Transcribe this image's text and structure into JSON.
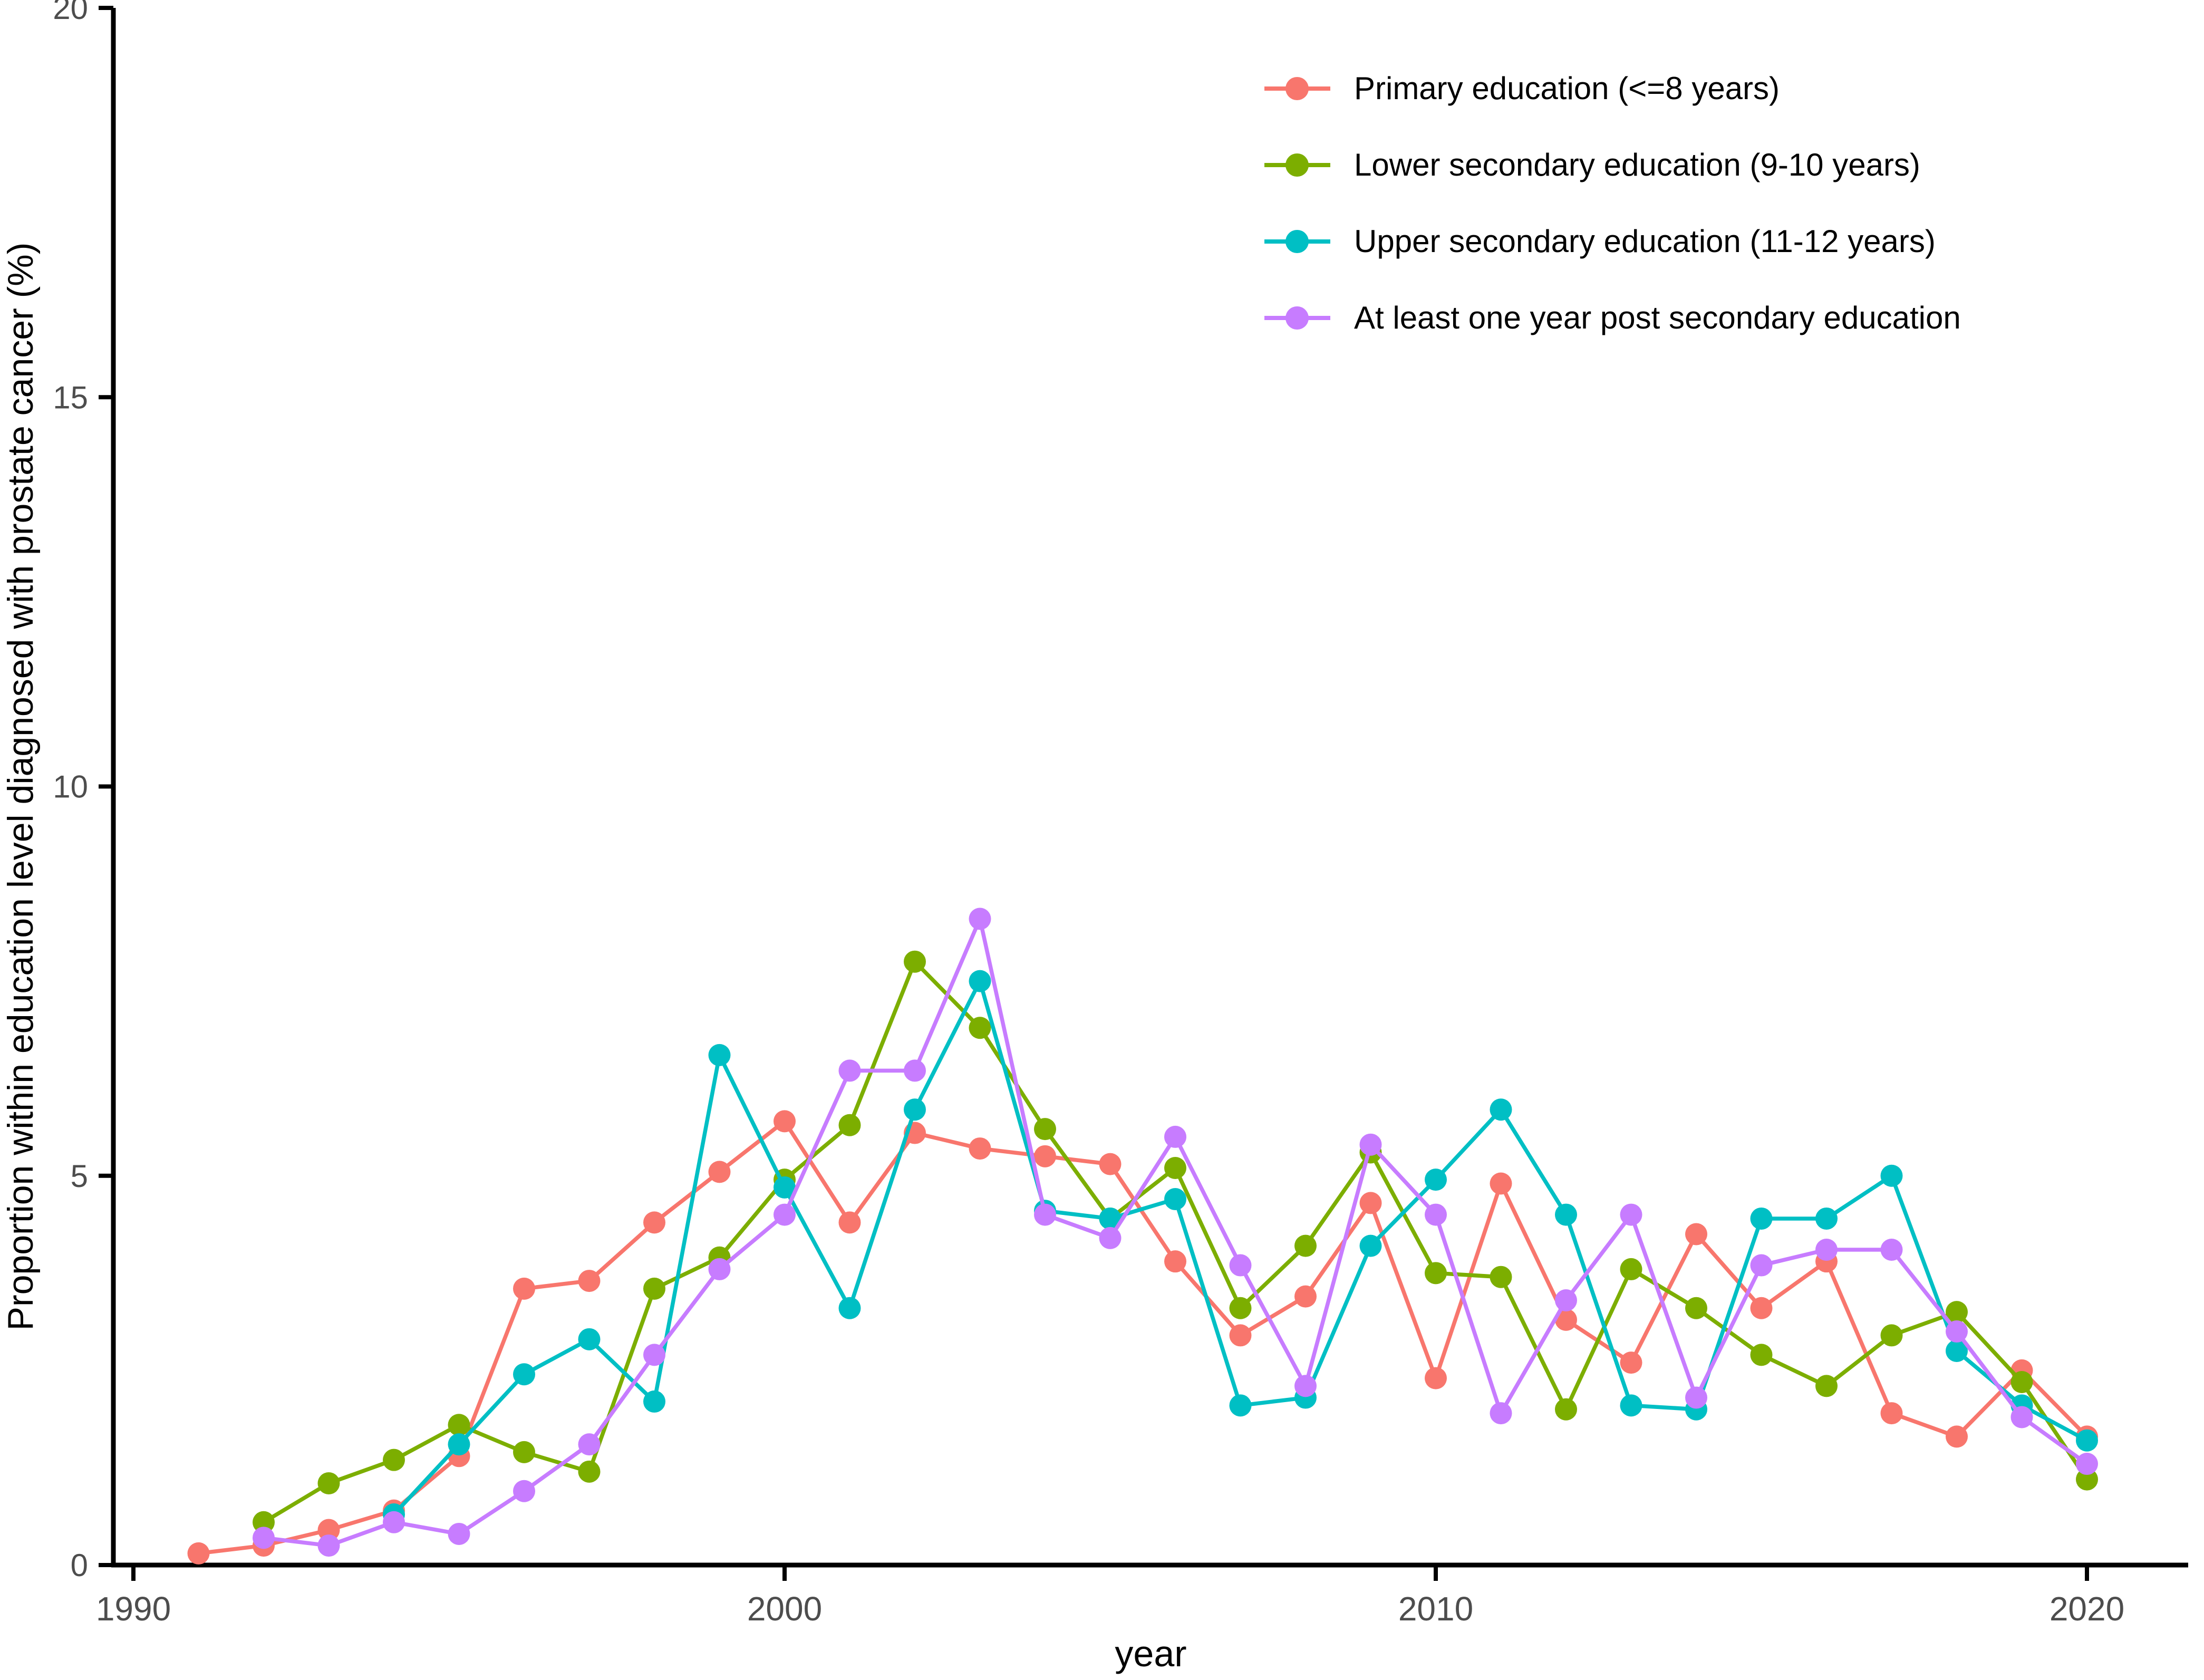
{
  "chart_data": {
    "type": "line",
    "title": "",
    "xlabel": "year",
    "ylabel": "Proportion within education level diagnosed with prostate cancer (%)",
    "xlim": [
      1989.7,
      2021.6
    ],
    "ylim": [
      0,
      20
    ],
    "x_ticks": [
      1990,
      2000,
      2010,
      2020
    ],
    "y_ticks": [
      0,
      5,
      10,
      15,
      20
    ],
    "grid": false,
    "legend_position": "top-right",
    "series": [
      {
        "name": "Primary education (<=8 years)",
        "color": "#F8766D",
        "start_year": 1991,
        "values": [
          0.15,
          0.25,
          0.45,
          0.7,
          1.4,
          3.55,
          3.65,
          4.4,
          5.05,
          5.7,
          4.4,
          5.55,
          5.35,
          5.25,
          5.15,
          3.9,
          2.95,
          3.45,
          4.65,
          2.4,
          4.9,
          3.15,
          2.6,
          4.25,
          3.3,
          3.9,
          1.95,
          1.65,
          2.5,
          1.65
        ]
      },
      {
        "name": "Lower secondary education (9-10 years)",
        "color": "#7CAE00",
        "start_year": 1992,
        "values": [
          0.55,
          1.05,
          1.35,
          1.8,
          1.45,
          1.2,
          3.55,
          3.95,
          4.95,
          5.65,
          7.75,
          6.9,
          5.6,
          4.45,
          5.1,
          3.3,
          4.1,
          5.3,
          3.75,
          3.7,
          2.0,
          3.8,
          3.3,
          2.7,
          2.3,
          2.95,
          3.25,
          2.35,
          1.1
        ]
      },
      {
        "name": "Upper secondary education (11-12 years)",
        "color": "#00BFC4",
        "start_year": 1994,
        "values": [
          0.65,
          1.55,
          2.45,
          2.9,
          2.1,
          6.55,
          4.85,
          3.3,
          5.85,
          7.5,
          4.55,
          4.45,
          4.7,
          2.05,
          2.15,
          4.1,
          4.95,
          5.85,
          4.5,
          2.05,
          2.0,
          4.45,
          4.45,
          5.0,
          2.75,
          2.05,
          1.6
        ]
      },
      {
        "name": "At least one year post secondary education",
        "color": "#C77CFF",
        "start_year": 1992,
        "values": [
          0.35,
          0.25,
          0.55,
          0.4,
          0.95,
          1.55,
          2.7,
          3.8,
          4.5,
          6.35,
          6.35,
          8.3,
          4.5,
          4.2,
          5.5,
          3.85,
          2.3,
          5.4,
          4.5,
          1.95,
          3.4,
          4.5,
          2.15,
          3.85,
          4.05,
          4.05,
          3.0,
          1.9,
          1.3
        ]
      }
    ]
  },
  "layout_colors": {
    "axis": "#000000",
    "tick_text": "#4d4d4d",
    "background": "#ffffff"
  }
}
